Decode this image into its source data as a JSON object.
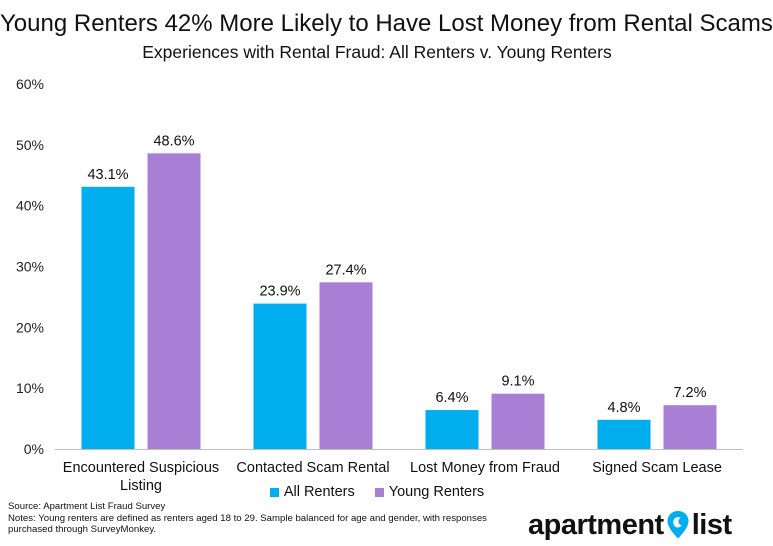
{
  "title": "Young Renters 42% More Likely to Have Lost Money from Rental Scams",
  "subtitle": "Experiences with Rental Fraud: All Renters v. Young Renters",
  "colors": {
    "all_renters": "#00AEEF",
    "young_renters": "#A97FD6",
    "axis": "#BFBFBF"
  },
  "chart_data": {
    "type": "bar",
    "title": "Young Renters 42% More Likely to Have Lost Money from Rental Scams",
    "subtitle": "Experiences with Rental Fraud: All Renters v. Young Renters",
    "categories": [
      [
        "Encountered Suspicious",
        "Listing"
      ],
      [
        "Contacted Scam Rental"
      ],
      [
        "Lost Money from Fraud"
      ],
      [
        "Signed Scam Lease"
      ]
    ],
    "series": [
      {
        "name": "All Renters",
        "values": [
          43.1,
          23.9,
          6.4,
          4.8
        ],
        "labels": [
          "43.1%",
          "23.9%",
          "6.4%",
          "4.8%"
        ],
        "color": "#00AEEF"
      },
      {
        "name": "Young Renters",
        "values": [
          48.6,
          27.4,
          9.1,
          7.2
        ],
        "labels": [
          "48.6%",
          "27.4%",
          "9.1%",
          "7.2%"
        ],
        "color": "#A97FD6"
      }
    ],
    "ylim": [
      0,
      60
    ],
    "yticks": [
      "0%",
      "10%",
      "20%",
      "30%",
      "40%",
      "50%",
      "60%"
    ],
    "grid": false,
    "legend": "bottom"
  },
  "legend": [
    {
      "label": "All Renters",
      "color": "#00AEEF"
    },
    {
      "label": "Young Renters",
      "color": "#A97FD6"
    }
  ],
  "source": "Source: Apartment List Fraud Survey",
  "notes_line1": "Notes: Young renters are defined as renters aged 18 to 29. Sample balanced for age and gender, with responses",
  "notes_line2": "purchased through SurveyMonkey.",
  "logo": {
    "part1": "apartment",
    "part2": "list",
    "icon": "map-pin-icon",
    "color": "#00AEEF"
  }
}
